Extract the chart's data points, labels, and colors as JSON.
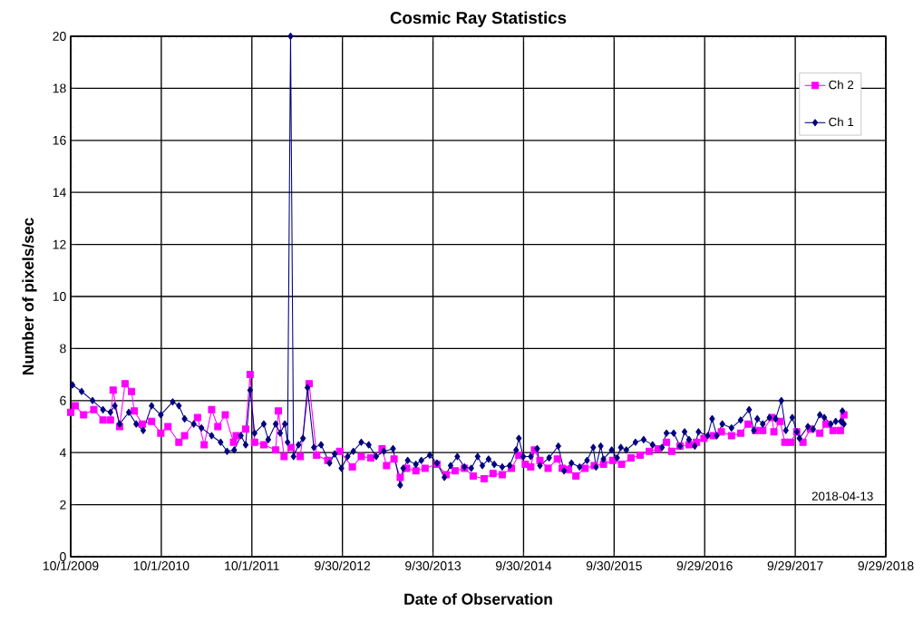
{
  "chart_data": {
    "type": "line",
    "title": "Cosmic Ray Statistics",
    "xlabel": "Date of Observation",
    "ylabel": "Number of pixels/sec",
    "xlim": [
      "2009-10-01",
      "2018-09-29"
    ],
    "xticks": [
      {
        "value": "2009-10-01",
        "label": "10/1/2009"
      },
      {
        "value": "2010-10-01",
        "label": "10/1/2010"
      },
      {
        "value": "2011-10-01",
        "label": "10/1/2011"
      },
      {
        "value": "2012-09-30",
        "label": "9/30/2012"
      },
      {
        "value": "2013-09-30",
        "label": "9/30/2013"
      },
      {
        "value": "2014-09-30",
        "label": "9/30/2014"
      },
      {
        "value": "2015-09-30",
        "label": "9/30/2015"
      },
      {
        "value": "2016-09-29",
        "label": "9/29/2016"
      },
      {
        "value": "2017-09-29",
        "label": "9/29/2017"
      },
      {
        "value": "2018-09-29",
        "label": "9/29/2018"
      }
    ],
    "ylim": [
      0,
      20
    ],
    "yticks": [
      0,
      2,
      4,
      6,
      8,
      10,
      12,
      14,
      16,
      18,
      20
    ],
    "grid": true,
    "legend": "top right",
    "annotations": [
      "2018-04-13"
    ],
    "series": [
      {
        "name": "Ch 2",
        "color": "#ff00ff",
        "marker": "square",
        "x": [
          "2009-10-01",
          "2009-10-19",
          "2009-11-22",
          "2010-01-02",
          "2010-02-08",
          "2010-03-10",
          "2010-03-21",
          "2010-04-16",
          "2010-05-08",
          "2010-06-03",
          "2010-06-14",
          "2010-07-17",
          "2010-08-23",
          "2010-09-29",
          "2010-10-28",
          "2010-12-11",
          "2011-01-03",
          "2011-02-24",
          "2011-03-23",
          "2011-04-22",
          "2011-05-17",
          "2011-06-16",
          "2011-07-19",
          "2011-07-30",
          "2011-09-06",
          "2011-09-24",
          "2011-10-12",
          "2011-11-18",
          "2012-01-05",
          "2012-01-16",
          "2012-02-08",
          "2012-03-07",
          "2012-04-13",
          "2012-05-19",
          "2012-06-18",
          "2012-08-02",
          "2012-09-19",
          "2012-11-09",
          "2012-12-15",
          "2013-01-22",
          "2013-03-09",
          "2013-03-27",
          "2013-04-26",
          "2013-05-21",
          "2013-06-16",
          "2013-07-23",
          "2013-08-29",
          "2013-10-16",
          "2013-11-22",
          "2013-12-28",
          "2014-02-04",
          "2014-03-11",
          "2014-04-24",
          "2014-05-30",
          "2014-07-06",
          "2014-08-12",
          "2014-09-11",
          "2014-10-07",
          "2014-10-29",
          "2014-11-13",
          "2014-12-05",
          "2015-01-07",
          "2015-02-13",
          "2015-03-05",
          "2015-03-30",
          "2015-04-29",
          "2015-06-05",
          "2015-07-12",
          "2015-08-18",
          "2015-09-24",
          "2015-10-30",
          "2015-12-07",
          "2016-01-13",
          "2016-02-19",
          "2016-03-25",
          "2016-04-28",
          "2016-05-19",
          "2016-06-22",
          "2016-07-28",
          "2016-08-27",
          "2016-09-26",
          "2016-11-02",
          "2016-12-05",
          "2017-01-15",
          "2017-02-21",
          "2017-03-23",
          "2017-04-22",
          "2017-05-21",
          "2017-06-27",
          "2017-07-05",
          "2017-07-30",
          "2017-08-18",
          "2017-09-10",
          "2017-10-05",
          "2017-10-30",
          "2017-11-29",
          "2018-01-06",
          "2018-01-31",
          "2018-02-28",
          "2018-03-30",
          "2018-04-13"
        ],
        "values": [
          5.55,
          5.8,
          5.45,
          5.65,
          5.25,
          5.25,
          6.4,
          5.0,
          6.65,
          6.35,
          5.6,
          5.1,
          5.2,
          4.75,
          5.0,
          4.4,
          4.65,
          5.35,
          4.3,
          5.65,
          5.0,
          5.45,
          4.4,
          4.65,
          4.9,
          7.0,
          4.4,
          4.3,
          4.1,
          5.6,
          3.85,
          4.2,
          3.85,
          6.65,
          3.9,
          3.7,
          4.05,
          3.45,
          3.85,
          3.8,
          4.15,
          3.5,
          3.75,
          3.05,
          3.4,
          3.3,
          3.4,
          3.55,
          3.15,
          3.3,
          3.4,
          3.1,
          3.0,
          3.2,
          3.15,
          3.4,
          3.9,
          3.55,
          3.45,
          4.1,
          3.7,
          3.4,
          3.75,
          3.4,
          3.35,
          3.1,
          3.4,
          3.5,
          3.55,
          3.7,
          3.55,
          3.8,
          3.9,
          4.05,
          4.15,
          4.4,
          4.05,
          4.25,
          4.3,
          4.4,
          4.55,
          4.65,
          4.8,
          4.65,
          4.75,
          5.1,
          4.85,
          4.85,
          5.35,
          4.8,
          5.2,
          4.4,
          4.4,
          4.8,
          4.4,
          4.9,
          4.75,
          5.1,
          4.85,
          4.85,
          5.45
        ]
      },
      {
        "name": "Ch 1",
        "color": "#000080",
        "marker": "diamond",
        "x": [
          "2009-10-08",
          "2009-11-14",
          "2009-12-28",
          "2010-02-08",
          "2010-03-10",
          "2010-03-28",
          "2010-04-16",
          "2010-05-23",
          "2010-06-22",
          "2010-07-20",
          "2010-08-23",
          "2010-09-29",
          "2010-11-16",
          "2010-12-11",
          "2011-01-03",
          "2011-02-09",
          "2011-03-12",
          "2011-04-22",
          "2011-05-28",
          "2011-06-23",
          "2011-07-22",
          "2011-08-18",
          "2011-09-06",
          "2011-09-24",
          "2011-10-12",
          "2011-11-18",
          "2011-12-06",
          "2012-01-05",
          "2012-01-23",
          "2012-02-11",
          "2012-02-22",
          "2012-03-05",
          "2012-03-17",
          "2012-04-06",
          "2012-04-24",
          "2012-05-12",
          "2012-06-07",
          "2012-07-06",
          "2012-08-09",
          "2012-08-30",
          "2012-09-26",
          "2012-10-21",
          "2012-11-13",
          "2012-12-15",
          "2013-01-14",
          "2013-02-13",
          "2013-03-16",
          "2013-04-22",
          "2013-05-21",
          "2013-06-02",
          "2013-06-20",
          "2013-07-23",
          "2013-08-14",
          "2013-09-17",
          "2013-10-16",
          "2013-11-15",
          "2013-12-10",
          "2014-01-06",
          "2014-02-04",
          "2014-03-03",
          "2014-03-29",
          "2014-04-17",
          "2014-05-12",
          "2014-06-04",
          "2014-07-06",
          "2014-08-05",
          "2014-08-31",
          "2014-09-11",
          "2014-09-29",
          "2014-10-29",
          "2014-11-24",
          "2014-12-05",
          "2015-01-11",
          "2015-02-17",
          "2015-03-12",
          "2015-04-11",
          "2015-05-14",
          "2015-06-13",
          "2015-07-08",
          "2015-07-19",
          "2015-08-07",
          "2015-08-18",
          "2015-09-20",
          "2015-10-12",
          "2015-10-27",
          "2015-11-18",
          "2015-12-25",
          "2016-01-27",
          "2016-03-03",
          "2016-04-10",
          "2016-04-28",
          "2016-05-27",
          "2016-06-22",
          "2016-07-10",
          "2016-07-28",
          "2016-08-20",
          "2016-09-04",
          "2016-10-11",
          "2016-10-29",
          "2016-11-17",
          "2016-12-09",
          "2017-01-15",
          "2017-02-21",
          "2017-03-27",
          "2017-04-15",
          "2017-04-29",
          "2017-05-21",
          "2017-06-17",
          "2017-07-12",
          "2017-08-04",
          "2017-08-22",
          "2017-09-17",
          "2017-10-05",
          "2017-10-16",
          "2017-11-19",
          "2017-12-10",
          "2018-01-06",
          "2018-01-24",
          "2018-02-19",
          "2018-03-11",
          "2018-04-01",
          "2018-04-07",
          "2018-04-13"
        ],
        "values": [
          6.6,
          6.35,
          6.0,
          5.65,
          5.55,
          5.8,
          5.1,
          5.55,
          5.1,
          4.85,
          5.8,
          5.45,
          5.95,
          5.8,
          5.3,
          5.1,
          4.95,
          4.65,
          4.4,
          4.05,
          4.1,
          4.65,
          4.3,
          6.4,
          4.75,
          5.1,
          4.5,
          5.1,
          4.75,
          5.1,
          4.4,
          20,
          3.85,
          4.3,
          4.55,
          6.5,
          4.2,
          4.3,
          3.6,
          3.95,
          3.4,
          3.85,
          4.05,
          4.4,
          4.3,
          3.85,
          4.05,
          4.15,
          2.75,
          3.4,
          3.7,
          3.55,
          3.7,
          3.9,
          3.6,
          3.05,
          3.5,
          3.85,
          3.45,
          3.4,
          3.85,
          3.5,
          3.75,
          3.55,
          3.45,
          3.5,
          4.1,
          4.55,
          3.85,
          3.85,
          4.15,
          3.5,
          3.8,
          4.25,
          3.3,
          3.6,
          3.45,
          3.7,
          4.2,
          3.45,
          4.25,
          3.75,
          4.1,
          3.8,
          4.2,
          4.1,
          4.4,
          4.5,
          4.3,
          4.2,
          4.75,
          4.75,
          4.25,
          4.8,
          4.5,
          4.25,
          4.8,
          4.65,
          5.3,
          4.65,
          5.1,
          4.95,
          5.25,
          5.65,
          4.85,
          5.3,
          5.1,
          5.35,
          5.3,
          6.0,
          4.85,
          5.35,
          4.8,
          4.55,
          5.0,
          4.9,
          5.45,
          5.35,
          5.1,
          5.2,
          5.2,
          5.6,
          5.1
        ]
      }
    ]
  }
}
